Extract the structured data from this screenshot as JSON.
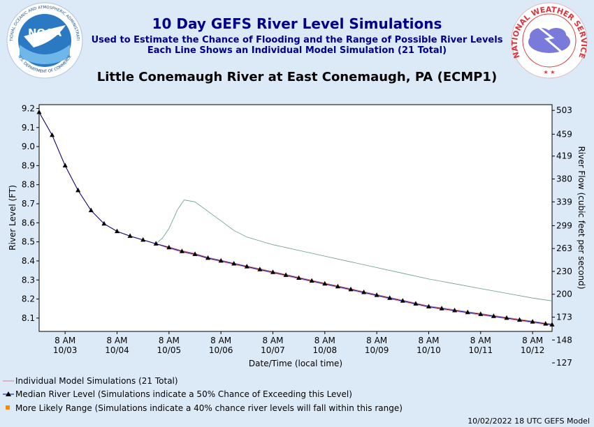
{
  "header": {
    "title": "10 Day GEFS River Level Simulations",
    "subtitle1": "Used to Estimate the Chance of Flooding and the Range of Possible River Levels",
    "subtitle2": "Each Line Shows an Individual Model Simulation (21 Total)",
    "station": "Little Conemaugh River at East Conemaugh, PA (ECMP1)",
    "noaa_text": "NOAA",
    "noaa_ring_top": "NATIONAL OCEANIC AND ATMOSPHERIC ADMINISTRATION",
    "noaa_ring_bottom": "U.S. DEPARTMENT OF COMMERCE",
    "nws_ring": "NATIONAL WEATHER SERVICE"
  },
  "colors": {
    "median": "#000080",
    "individual": "#e08080",
    "range": "#ff8c00",
    "outlier": "#6a9a8a",
    "title": "#00008b"
  },
  "chart_data": {
    "type": "line",
    "title": "10 Day GEFS River Level Simulations",
    "xlabel": "Date/Time (local time)",
    "ylabel": "River Level (FT)",
    "y2label": "River Flow (cubic feet per second)",
    "ylim": [
      8.03,
      9.22
    ],
    "xlim": [
      0,
      237
    ],
    "grid": false,
    "y_ticks": [
      8.1,
      8.2,
      8.3,
      8.4,
      8.5,
      8.6,
      8.7,
      8.8,
      8.9,
      9.0,
      9.1,
      9.2
    ],
    "y_tick_labels": [
      "8.1",
      "8.2",
      "8.3",
      "8.4",
      "8.5",
      "8.6",
      "8.7",
      "8.8",
      "8.9",
      "9.0",
      "9.1",
      "9.2"
    ],
    "y2_ticks": [
      {
        "level": 9.19,
        "label": "503"
      },
      {
        "level": 9.065,
        "label": "459"
      },
      {
        "level": 8.95,
        "label": "419"
      },
      {
        "level": 8.83,
        "label": "380"
      },
      {
        "level": 8.71,
        "label": "339"
      },
      {
        "level": 8.585,
        "label": "299"
      },
      {
        "level": 8.465,
        "label": "263"
      },
      {
        "level": 8.345,
        "label": "230"
      },
      {
        "level": 8.225,
        "label": "200"
      },
      {
        "level": 8.105,
        "label": "173"
      },
      {
        "level": 7.985,
        "label": "148"
      },
      {
        "level": 7.865,
        "label": "127"
      }
    ],
    "x_ticks": [
      {
        "x": 12,
        "time": "8 AM",
        "date": "10/03"
      },
      {
        "x": 36,
        "time": "8 AM",
        "date": "10/04"
      },
      {
        "x": 60,
        "time": "8 AM",
        "date": "10/05"
      },
      {
        "x": 84,
        "time": "8 AM",
        "date": "10/06"
      },
      {
        "x": 108,
        "time": "8 AM",
        "date": "10/07"
      },
      {
        "x": 132,
        "time": "8 AM",
        "date": "10/08"
      },
      {
        "x": 156,
        "time": "8 AM",
        "date": "10/09"
      },
      {
        "x": 180,
        "time": "8 AM",
        "date": "10/10"
      },
      {
        "x": 204,
        "time": "8 AM",
        "date": "10/11"
      },
      {
        "x": 228,
        "time": "8 AM",
        "date": "10/12"
      }
    ],
    "series": [
      {
        "name": "Median River Level (Simulations indicate a 50% Chance of Exceeding this Level)",
        "x": [
          0,
          6,
          12,
          18,
          24,
          30,
          36,
          42,
          48,
          54,
          60,
          66,
          72,
          78,
          84,
          90,
          96,
          102,
          108,
          114,
          120,
          126,
          132,
          138,
          144,
          150,
          156,
          162,
          168,
          174,
          180,
          186,
          192,
          198,
          204,
          210,
          216,
          222,
          228,
          234,
          237
        ],
        "values": [
          9.18,
          9.06,
          8.9,
          8.77,
          8.665,
          8.595,
          8.555,
          8.53,
          8.51,
          8.49,
          8.47,
          8.45,
          8.435,
          8.415,
          8.4,
          8.385,
          8.37,
          8.355,
          8.34,
          8.325,
          8.31,
          8.295,
          8.28,
          8.265,
          8.25,
          8.235,
          8.22,
          8.205,
          8.19,
          8.175,
          8.16,
          8.15,
          8.14,
          8.13,
          8.12,
          8.11,
          8.1,
          8.09,
          8.08,
          8.07,
          8.065
        ]
      },
      {
        "name": "Individual Model Simulations (21 Total)",
        "x": [
          0,
          6,
          12,
          18,
          24,
          30,
          36,
          42,
          48,
          54,
          57,
          60,
          64,
          67,
          72,
          78,
          84,
          90,
          96,
          102,
          108,
          120,
          132,
          144,
          156,
          168,
          180,
          192,
          204,
          216,
          228,
          237
        ],
        "values": [
          9.18,
          9.06,
          8.9,
          8.77,
          8.665,
          8.595,
          8.555,
          8.53,
          8.51,
          8.49,
          8.52,
          8.57,
          8.67,
          8.72,
          8.71,
          8.66,
          8.61,
          8.56,
          8.525,
          8.505,
          8.485,
          8.455,
          8.425,
          8.395,
          8.365,
          8.335,
          8.305,
          8.28,
          8.255,
          8.23,
          8.205,
          8.19
        ]
      }
    ],
    "legend": [
      "Individual Model Simulations (21 Total)",
      "Median River Level (Simulations indicate a 50% Chance of Exceeding this Level)",
      "More Likely Range (Simulations indicate a 40% chance river levels will fall within this range)"
    ],
    "legend_placement": "bottom-left"
  },
  "footer": "10/02/2022 18 UTC GEFS Model"
}
